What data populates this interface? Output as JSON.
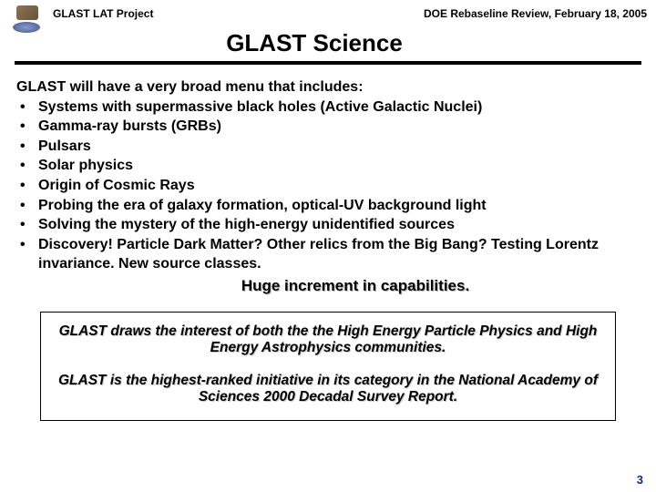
{
  "header": {
    "left": "GLAST LAT Project",
    "right": "DOE Rebaseline Review, February 18, 2005"
  },
  "title": "GLAST Science",
  "intro": "GLAST will have a very broad menu that includes:",
  "bullets": [
    "Systems with supermassive black holes (Active Galactic Nuclei)",
    "Gamma-ray bursts (GRBs)",
    "Pulsars",
    "Solar physics",
    "Origin of Cosmic Rays",
    "Probing the era of galaxy formation, optical-UV background light",
    "Solving the mystery of the high-energy unidentified sources",
    "Discovery!  Particle Dark Matter?  Other relics from the Big Bang?  Testing Lorentz invariance.  New source classes."
  ],
  "huge": "Huge increment in capabilities.",
  "callout": {
    "p1": "GLAST draws the interest of both the the High Energy Particle Physics and High Energy Astrophysics communities.",
    "p2": "GLAST is the highest-ranked initiative in its category in the National Academy of Sciences 2000 Decadal Survey Report."
  },
  "pagenum": "3",
  "colors": {
    "text": "#000000",
    "pagenum": "#0a2a8a",
    "rule": "#000000",
    "background": "#ffffff"
  }
}
